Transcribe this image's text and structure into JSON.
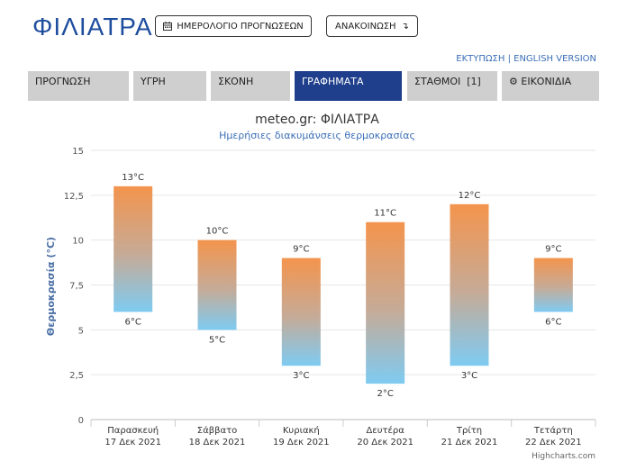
{
  "header": {
    "city": "ΦΙΛΙΑΤΡΑ",
    "calendar_button": "ΗΜΕΡΟΛΟΓΙΟ ΠΡΟΓΝΩΣΕΩΝ",
    "announce_button": "ΑΝΑΚΟΙΝΩΣΗ",
    "print_link": "ΕΚΤΥΠΩΣΗ",
    "english_link": "ENGLISH VERSION"
  },
  "tabs": [
    {
      "label": "ΠΡΟΓΝΩΣΗ"
    },
    {
      "label": "ΥΓΡΗ"
    },
    {
      "label": "ΣΚΟΝΗ"
    },
    {
      "label": "ΓΡΑΦΗΜΑΤΑ"
    },
    {
      "label": "ΣΤΑΘΜΟΙ  [1]"
    },
    {
      "label": "ΕΙΚΟΝΙΔΙΑ"
    }
  ],
  "colors": {
    "brand": "#1f4e9e",
    "active_tab": "#1f3f8c",
    "bar_top": "#f4944d",
    "bar_bottom": "#7ecbf2"
  },
  "chart_data": {
    "type": "bar",
    "title": "meteo.gr: ΦΙΛΙΑΤΡΑ",
    "subtitle": "Ημερήσιες διακυμάνσεις θερμοκρασίας",
    "ylabel": "Θερμοκρασία (°C)",
    "ylim": [
      0,
      15
    ],
    "yticks": [
      "0",
      "2,5",
      "5",
      "7,5",
      "10",
      "12,5",
      "15"
    ],
    "categories": [
      {
        "day": "Παρασκευή",
        "date": "17 Δεκ 2021"
      },
      {
        "day": "Σάββατο",
        "date": "18 Δεκ 2021"
      },
      {
        "day": "Κυριακή",
        "date": "19 Δεκ 2021"
      },
      {
        "day": "Δευτέρα",
        "date": "20 Δεκ 2021"
      },
      {
        "day": "Τρίτη",
        "date": "21 Δεκ 2021"
      },
      {
        "day": "Τετάρτη",
        "date": "22 Δεκ 2021"
      }
    ],
    "series": [
      {
        "low": 6,
        "high": 13,
        "low_label": "6°C",
        "high_label": "13°C"
      },
      {
        "low": 5,
        "high": 10,
        "low_label": "5°C",
        "high_label": "10°C"
      },
      {
        "low": 3,
        "high": 9,
        "low_label": "3°C",
        "high_label": "9°C"
      },
      {
        "low": 2,
        "high": 11,
        "low_label": "2°C",
        "high_label": "11°C"
      },
      {
        "low": 3,
        "high": 12,
        "low_label": "3°C",
        "high_label": "12°C"
      },
      {
        "low": 6,
        "high": 9,
        "low_label": "6°C",
        "high_label": "9°C"
      }
    ],
    "credit": "Highcharts.com",
    "grid": true
  }
}
